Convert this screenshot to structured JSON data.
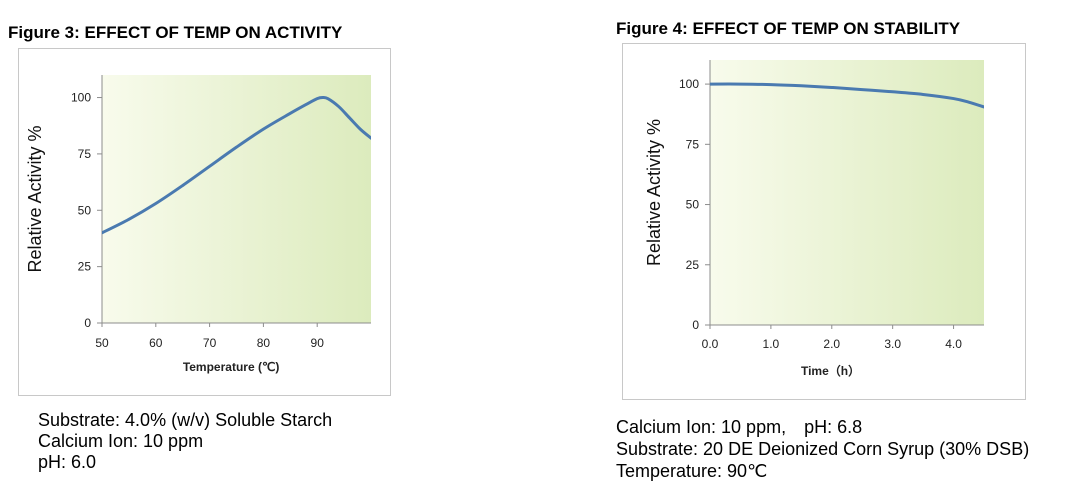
{
  "chart_data": [
    {
      "type": "line",
      "title": "Figure 3: EFFECT OF TEMP ON ACTIVITY",
      "xlabel": "Temperature (℃)",
      "ylabel": "Relative Activity %",
      "xlim": [
        50,
        100
      ],
      "ylim": [
        0,
        110
      ],
      "xticks": [
        50,
        60,
        70,
        80,
        90
      ],
      "xtick_labels": [
        "50",
        "60",
        "70",
        "80",
        "90"
      ],
      "yticks": [
        0,
        25,
        50,
        75,
        100
      ],
      "ytick_labels": [
        "0",
        "25",
        "50",
        "75",
        "100"
      ],
      "grid": false,
      "legend": "none",
      "series": [
        {
          "x": [
            50,
            55,
            60,
            65,
            70,
            75,
            80,
            85,
            88,
            90,
            91,
            92,
            94,
            96,
            98,
            100
          ],
          "y": [
            40,
            46,
            53,
            61,
            69.5,
            78,
            86,
            93,
            97,
            99.5,
            100,
            99.5,
            96,
            91,
            86,
            82
          ],
          "color": "#4a7ab0"
        }
      ],
      "notes": [
        "Substrate: 4.0% (w/v) Soluble Starch",
        "Calcium Ion: 10 ppm",
        "pH: 6.0"
      ]
    },
    {
      "type": "line",
      "title": "Figure 4: EFFECT OF TEMP ON STABILITY",
      "xlabel": "Time（h）",
      "ylabel": "Relative Activity %",
      "xlim": [
        0,
        4.5
      ],
      "ylim": [
        0,
        110
      ],
      "xticks": [
        0,
        1,
        2,
        3,
        4
      ],
      "xtick_labels": [
        "0.0",
        "1.0",
        "2.0",
        "3.0",
        "4.0"
      ],
      "yticks": [
        0,
        25,
        50,
        75,
        100
      ],
      "ytick_labels": [
        "0",
        "25",
        "50",
        "75",
        "100"
      ],
      "grid": false,
      "legend": "none",
      "series": [
        {
          "x": [
            0,
            0.5,
            1,
            1.5,
            2,
            2.5,
            3,
            3.5,
            4,
            4.25,
            4.5
          ],
          "y": [
            100,
            100,
            99.8,
            99.3,
            98.6,
            97.7,
            96.8,
            95.7,
            94,
            92.5,
            90.5
          ],
          "color": "#4a7ab0"
        }
      ],
      "notes_line1_a": "Calcium Ion: 10 ppm,",
      "notes_line1_b": "pH: 6.8",
      "notes_line2": "Substrate: 20 DE Deionized Corn Syrup (30% DSB)",
      "notes_line3": "Temperature: 90℃"
    }
  ]
}
